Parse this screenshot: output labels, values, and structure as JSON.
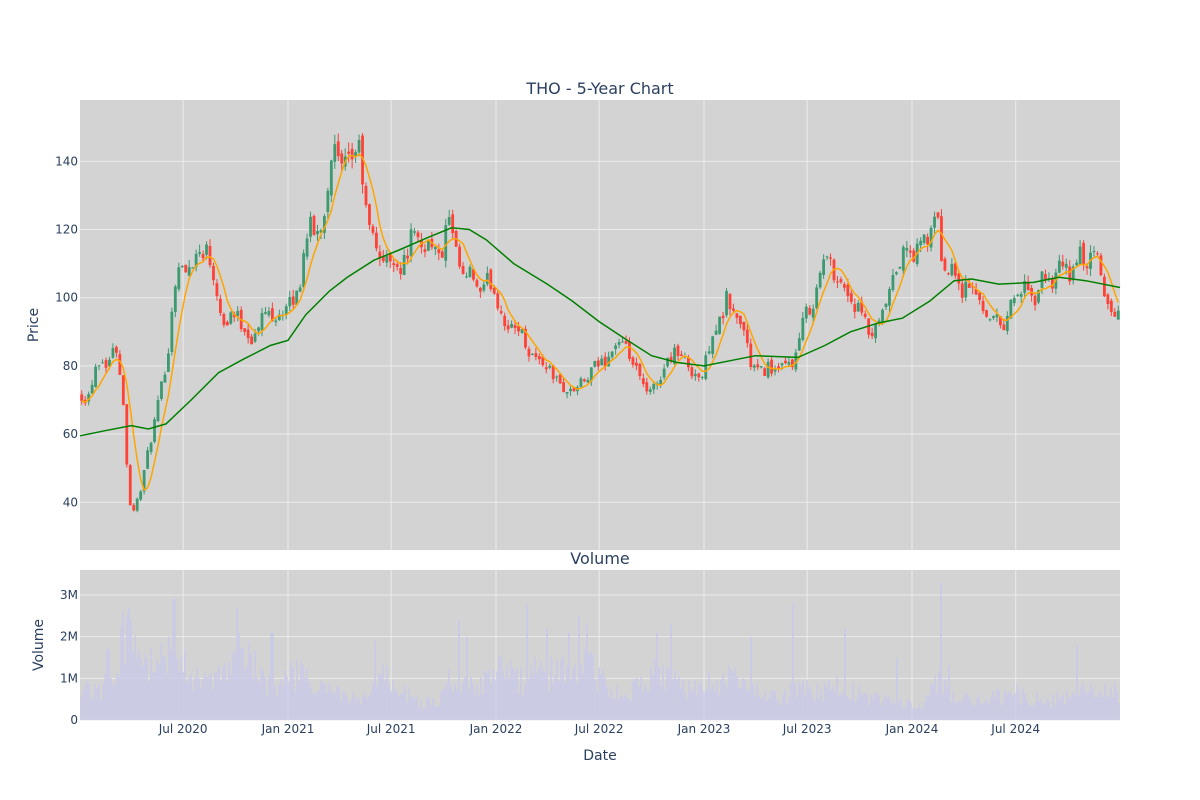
{
  "chart_data": [
    {
      "type": "candlestick",
      "title": "THO - 5-Year Chart",
      "xlabel": "",
      "ylabel": "Price",
      "xlim": [
        "2020-01-02",
        "2024-12-31"
      ],
      "ylim": [
        26,
        158
      ],
      "grid": true,
      "legend": "none",
      "yticks": [
        40,
        60,
        80,
        100,
        120,
        140
      ],
      "xticks": [
        {
          "date": "2020-07-01",
          "label": "Jul 2020"
        },
        {
          "date": "2021-01-01",
          "label": "Jan 2021"
        },
        {
          "date": "2021-07-01",
          "label": "Jul 2021"
        },
        {
          "date": "2022-01-01",
          "label": "Jan 2022"
        },
        {
          "date": "2022-07-01",
          "label": "Jul 2022"
        },
        {
          "date": "2023-01-01",
          "label": "Jan 2023"
        },
        {
          "date": "2023-07-01",
          "label": "Jul 2023"
        },
        {
          "date": "2024-01-01",
          "label": "Jan 2024"
        },
        {
          "date": "2024-07-01",
          "label": "Jul 2024"
        }
      ],
      "colors": {
        "up": "#3d9970",
        "down": "#ff4136",
        "ma_short": "#ffa500",
        "ma_long": "#008000",
        "plot_bg": "#d3d3d3",
        "grid": "#ebebeb"
      },
      "close_path": [
        [
          "2020-01-02",
          72
        ],
        [
          "2020-01-15",
          70
        ],
        [
          "2020-02-01",
          82
        ],
        [
          "2020-02-20",
          81
        ],
        [
          "2020-03-05",
          86
        ],
        [
          "2020-03-15",
          76
        ],
        [
          "2020-03-25",
          50
        ],
        [
          "2020-04-01",
          36
        ],
        [
          "2020-04-15",
          42
        ],
        [
          "2020-05-01",
          55
        ],
        [
          "2020-05-20",
          70
        ],
        [
          "2020-06-05",
          85
        ],
        [
          "2020-06-20",
          110
        ],
        [
          "2020-07-05",
          107
        ],
        [
          "2020-07-20",
          112
        ],
        [
          "2020-08-10",
          115
        ],
        [
          "2020-08-25",
          106
        ],
        [
          "2020-09-10",
          92
        ],
        [
          "2020-09-25",
          96
        ],
        [
          "2020-10-10",
          93
        ],
        [
          "2020-11-01",
          87
        ],
        [
          "2020-11-20",
          96
        ],
        [
          "2020-12-10",
          95
        ],
        [
          "2021-01-01",
          97
        ],
        [
          "2021-01-20",
          102
        ],
        [
          "2021-02-05",
          122
        ],
        [
          "2021-02-20",
          118
        ],
        [
          "2021-03-05",
          124
        ],
        [
          "2021-03-20",
          145
        ],
        [
          "2021-04-05",
          137
        ],
        [
          "2021-04-20",
          140
        ],
        [
          "2021-05-05",
          145
        ],
        [
          "2021-05-20",
          122
        ],
        [
          "2021-06-05",
          115
        ],
        [
          "2021-06-20",
          110
        ],
        [
          "2021-07-05",
          112
        ],
        [
          "2021-07-20",
          108
        ],
        [
          "2021-08-05",
          118
        ],
        [
          "2021-08-25",
          115
        ],
        [
          "2021-09-10",
          117
        ],
        [
          "2021-09-25",
          110
        ],
        [
          "2021-10-10",
          124
        ],
        [
          "2021-10-20",
          114
        ],
        [
          "2021-11-05",
          105
        ],
        [
          "2021-11-20",
          107
        ],
        [
          "2021-12-05",
          100
        ],
        [
          "2021-12-20",
          106
        ],
        [
          "2022-01-10",
          96
        ],
        [
          "2022-01-25",
          90
        ],
        [
          "2022-02-10",
          92
        ],
        [
          "2022-02-25",
          85
        ],
        [
          "2022-03-15",
          82
        ],
        [
          "2022-04-01",
          80
        ],
        [
          "2022-04-20",
          75
        ],
        [
          "2022-05-10",
          72
        ],
        [
          "2022-05-25",
          74
        ],
        [
          "2022-06-10",
          76
        ],
        [
          "2022-06-25",
          80
        ],
        [
          "2022-07-15",
          82
        ],
        [
          "2022-08-01",
          87
        ],
        [
          "2022-08-20",
          84
        ],
        [
          "2022-09-05",
          78
        ],
        [
          "2022-09-25",
          71
        ],
        [
          "2022-10-10",
          75
        ],
        [
          "2022-10-25",
          80
        ],
        [
          "2022-11-10",
          85
        ],
        [
          "2022-11-25",
          82
        ],
        [
          "2022-12-10",
          79
        ],
        [
          "2022-12-28",
          76
        ],
        [
          "2023-01-15",
          90
        ],
        [
          "2023-02-01",
          93
        ],
        [
          "2023-02-10",
          100
        ],
        [
          "2023-02-25",
          94
        ],
        [
          "2023-03-10",
          92
        ],
        [
          "2023-03-25",
          80
        ],
        [
          "2023-04-10",
          78
        ],
        [
          "2023-04-25",
          80
        ],
        [
          "2023-05-10",
          78
        ],
        [
          "2023-05-25",
          80
        ],
        [
          "2023-06-10",
          82
        ],
        [
          "2023-06-25",
          94
        ],
        [
          "2023-07-15",
          100
        ],
        [
          "2023-08-01",
          113
        ],
        [
          "2023-08-15",
          108
        ],
        [
          "2023-09-01",
          104
        ],
        [
          "2023-09-20",
          98
        ],
        [
          "2023-10-05",
          95
        ],
        [
          "2023-10-20",
          88
        ],
        [
          "2023-11-05",
          92
        ],
        [
          "2023-11-20",
          100
        ],
        [
          "2023-12-05",
          108
        ],
        [
          "2023-12-20",
          114
        ],
        [
          "2024-01-05",
          112
        ],
        [
          "2024-01-20",
          117
        ],
        [
          "2024-02-05",
          118
        ],
        [
          "2024-02-15",
          127
        ],
        [
          "2024-02-25",
          104
        ],
        [
          "2024-03-10",
          113
        ],
        [
          "2024-03-25",
          102
        ],
        [
          "2024-04-10",
          104
        ],
        [
          "2024-04-25",
          100
        ],
        [
          "2024-05-10",
          96
        ],
        [
          "2024-05-25",
          94
        ],
        [
          "2024-06-10",
          92
        ],
        [
          "2024-06-25",
          100
        ],
        [
          "2024-07-15",
          103
        ],
        [
          "2024-08-01",
          98
        ],
        [
          "2024-08-20",
          107
        ],
        [
          "2024-09-05",
          104
        ],
        [
          "2024-09-20",
          110
        ],
        [
          "2024-10-05",
          106
        ],
        [
          "2024-10-20",
          113
        ],
        [
          "2024-11-05",
          110
        ],
        [
          "2024-11-20",
          113
        ],
        [
          "2024-12-05",
          100
        ],
        [
          "2024-12-20",
          95
        ],
        [
          "2024-12-31",
          95
        ]
      ],
      "ma_long_path": [
        [
          "2020-01-02",
          59.5
        ],
        [
          "2020-02-15",
          61
        ],
        [
          "2020-04-01",
          62.5
        ],
        [
          "2020-05-01",
          61.5
        ],
        [
          "2020-06-01",
          63
        ],
        [
          "2020-07-15",
          70
        ],
        [
          "2020-09-01",
          78
        ],
        [
          "2020-10-15",
          82
        ],
        [
          "2020-12-01",
          86
        ],
        [
          "2021-01-01",
          87.5
        ],
        [
          "2021-02-01",
          95
        ],
        [
          "2021-03-15",
          102
        ],
        [
          "2021-04-15",
          106
        ],
        [
          "2021-06-01",
          111
        ],
        [
          "2021-07-15",
          114
        ],
        [
          "2021-09-01",
          117.5
        ],
        [
          "2021-10-15",
          120.5
        ],
        [
          "2021-11-15",
          120
        ],
        [
          "2021-12-15",
          117
        ],
        [
          "2022-02-01",
          110
        ],
        [
          "2022-04-01",
          104
        ],
        [
          "2022-05-15",
          99
        ],
        [
          "2022-07-01",
          93
        ],
        [
          "2022-08-15",
          88
        ],
        [
          "2022-10-01",
          83
        ],
        [
          "2022-11-15",
          81
        ],
        [
          "2023-01-01",
          80
        ],
        [
          "2023-02-15",
          81.5
        ],
        [
          "2023-04-01",
          83
        ],
        [
          "2023-06-15",
          82.5
        ],
        [
          "2023-08-01",
          86
        ],
        [
          "2023-09-15",
          90
        ],
        [
          "2023-11-01",
          92.5
        ],
        [
          "2023-12-15",
          94
        ],
        [
          "2024-02-01",
          99
        ],
        [
          "2024-03-15",
          105
        ],
        [
          "2024-04-15",
          105.5
        ],
        [
          "2024-06-01",
          104
        ],
        [
          "2024-08-01",
          104.5
        ],
        [
          "2024-09-15",
          106
        ],
        [
          "2024-11-01",
          105
        ],
        [
          "2024-12-31",
          103
        ]
      ]
    },
    {
      "type": "bar",
      "title": "Volume",
      "xlabel": "Date",
      "ylabel": "Volume",
      "ylim": [
        0,
        3600000
      ],
      "yticks": [
        {
          "value": 0,
          "label": "0"
        },
        {
          "value": 1000000,
          "label": "1M"
        },
        {
          "value": 2000000,
          "label": "2M"
        },
        {
          "value": 3000000,
          "label": "3M"
        }
      ],
      "bar_color": "#c9cbe8",
      "volume_path": [
        [
          "2020-01-02",
          0.9
        ],
        [
          "2020-02-01",
          0.7
        ],
        [
          "2020-03-01",
          1.3
        ],
        [
          "2020-03-20",
          2.4
        ],
        [
          "2020-04-15",
          1.7
        ],
        [
          "2020-05-15",
          1.3
        ],
        [
          "2020-06-15",
          2.3
        ],
        [
          "2020-07-15",
          1.2
        ],
        [
          "2020-08-15",
          0.9
        ],
        [
          "2020-09-15",
          1.2
        ],
        [
          "2020-10-15",
          1.9
        ],
        [
          "2020-11-15",
          1.1
        ],
        [
          "2020-12-15",
          1.0
        ],
        [
          "2021-01-15",
          1.2
        ],
        [
          "2021-02-15",
          0.9
        ],
        [
          "2021-03-15",
          0.8
        ],
        [
          "2021-04-15",
          0.6
        ],
        [
          "2021-05-15",
          0.5
        ],
        [
          "2021-06-15",
          1.2
        ],
        [
          "2021-07-15",
          0.8
        ],
        [
          "2021-08-15",
          0.5
        ],
        [
          "2021-09-15",
          0.45
        ],
        [
          "2021-10-15",
          1.1
        ],
        [
          "2021-11-15",
          0.9
        ],
        [
          "2021-12-15",
          1.0
        ],
        [
          "2022-01-15",
          1.4
        ],
        [
          "2022-02-15",
          1.0
        ],
        [
          "2022-03-15",
          1.3
        ],
        [
          "2022-04-15",
          1.2
        ],
        [
          "2022-05-15",
          1.5
        ],
        [
          "2022-06-15",
          1.4
        ],
        [
          "2022-07-15",
          0.9
        ],
        [
          "2022-08-15",
          0.7
        ],
        [
          "2022-09-15",
          0.9
        ],
        [
          "2022-10-15",
          1.3
        ],
        [
          "2022-11-15",
          1.0
        ],
        [
          "2022-12-15",
          0.8
        ],
        [
          "2023-01-15",
          1.0
        ],
        [
          "2023-02-15",
          1.1
        ],
        [
          "2023-03-15",
          0.9
        ],
        [
          "2023-04-15",
          0.6
        ],
        [
          "2023-05-15",
          0.55
        ],
        [
          "2023-06-15",
          0.9
        ],
        [
          "2023-07-15",
          0.7
        ],
        [
          "2023-08-15",
          0.9
        ],
        [
          "2023-09-15",
          0.8
        ],
        [
          "2023-10-15",
          0.6
        ],
        [
          "2023-11-15",
          0.5
        ],
        [
          "2023-12-15",
          0.5
        ],
        [
          "2024-01-15",
          0.3
        ],
        [
          "2024-02-15",
          1.0
        ],
        [
          "2024-03-15",
          0.6
        ],
        [
          "2024-04-15",
          0.5
        ],
        [
          "2024-05-15",
          0.55
        ],
        [
          "2024-06-15",
          0.65
        ],
        [
          "2024-07-15",
          0.7
        ],
        [
          "2024-08-15",
          0.5
        ],
        [
          "2024-09-15",
          0.55
        ],
        [
          "2024-10-15",
          0.7
        ],
        [
          "2024-11-15",
          0.8
        ],
        [
          "2024-12-31",
          0.7
        ]
      ],
      "volume_spikes": [
        [
          "2020-02-20",
          1.7
        ],
        [
          "2020-03-23",
          2.5
        ],
        [
          "2020-04-01",
          2.1
        ],
        [
          "2020-06-15",
          2.9
        ],
        [
          "2020-10-02",
          2.7
        ],
        [
          "2020-12-04",
          2.1
        ],
        [
          "2021-06-04",
          1.9
        ],
        [
          "2021-10-29",
          2.4
        ],
        [
          "2021-11-12",
          2.0
        ],
        [
          "2022-02-25",
          2.8
        ],
        [
          "2022-04-01",
          2.2
        ],
        [
          "2022-05-10",
          2.1
        ],
        [
          "2022-05-27",
          2.5
        ],
        [
          "2022-06-10",
          2.3
        ],
        [
          "2022-10-12",
          2.1
        ],
        [
          "2022-11-04",
          2.3
        ],
        [
          "2023-03-24",
          2.0
        ],
        [
          "2023-06-06",
          2.8
        ],
        [
          "2023-09-06",
          2.2
        ],
        [
          "2023-12-06",
          1.5
        ],
        [
          "2024-02-20",
          3.3
        ],
        [
          "2024-03-06",
          1.3
        ],
        [
          "2024-10-15",
          1.8
        ]
      ]
    }
  ]
}
